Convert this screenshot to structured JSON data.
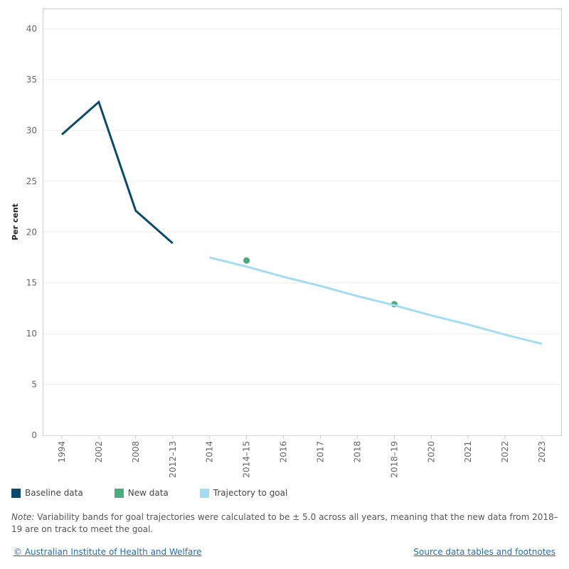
{
  "chart_data": {
    "type": "line",
    "y_label": "Per cent",
    "categories": [
      "1994",
      "2002",
      "2008",
      "2012–13",
      "2014",
      "2014–15",
      "2016",
      "2017",
      "2018",
      "2018–19",
      "2020",
      "2021",
      "2022",
      "2023"
    ],
    "series": [
      {
        "name": "Baseline data",
        "color": "#0b4a6a",
        "style": "line",
        "values": [
          29.6,
          32.8,
          22.1,
          18.9,
          null,
          null,
          null,
          null,
          null,
          null,
          null,
          null,
          null,
          null
        ]
      },
      {
        "name": "New data",
        "color": "#4aab7d",
        "style": "markers",
        "values": [
          null,
          null,
          null,
          null,
          null,
          17.2,
          null,
          null,
          null,
          12.9,
          null,
          null,
          null,
          null
        ]
      },
      {
        "name": "Trajectory to goal",
        "color": "#a3dcf3",
        "style": "line",
        "values": [
          null,
          null,
          null,
          null,
          17.5,
          16.6,
          15.6,
          14.7,
          13.7,
          12.8,
          11.8,
          10.9,
          9.9,
          9.0
        ]
      }
    ],
    "ylim": [
      0,
      42
    ],
    "yticks": [
      0,
      5,
      10,
      15,
      20,
      25,
      30,
      35,
      40
    ],
    "grid": true
  },
  "note": {
    "prefix": "Note:",
    "text": " Variability bands for goal trajectories were calculated to be ± 5.0 across all years, meaning that the new data from 2018–19 are on track to meet the goal."
  },
  "footer": {
    "left_link": "© Australian Institute of Health and Welfare",
    "right_link": "Source data tables and footnotes"
  }
}
